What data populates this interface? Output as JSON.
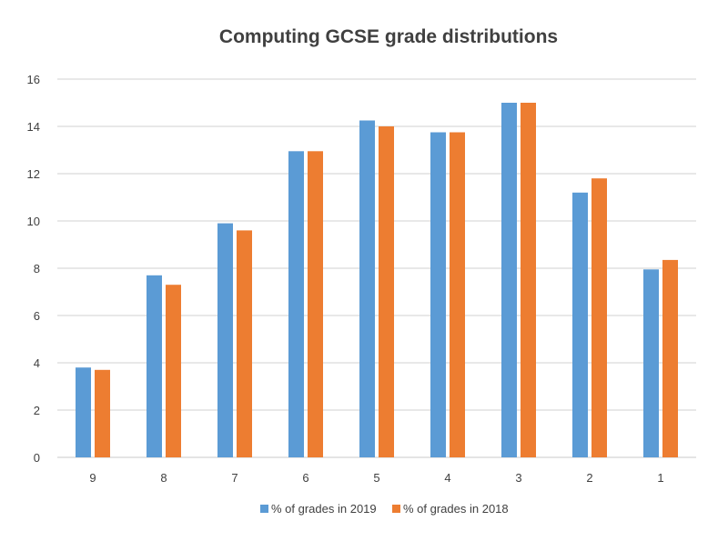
{
  "chart_data": {
    "type": "bar",
    "title": "Computing GCSE grade distributions",
    "categories": [
      "9",
      "8",
      "7",
      "6",
      "5",
      "4",
      "3",
      "2",
      "1"
    ],
    "series": [
      {
        "name": "% of grades in 2019",
        "color": "#5B9BD5",
        "values": [
          3.8,
          7.7,
          9.9,
          12.95,
          14.25,
          13.75,
          15.0,
          11.2,
          7.95
        ]
      },
      {
        "name": "% of grades in 2018",
        "color": "#ED7D31",
        "values": [
          3.7,
          7.3,
          9.6,
          12.95,
          14.0,
          13.75,
          15.0,
          11.8,
          8.35
        ]
      }
    ],
    "xlabel": "",
    "ylabel": "",
    "ylim": [
      0,
      16
    ],
    "yticks": [
      "0",
      "2",
      "4",
      "6",
      "8",
      "10",
      "12",
      "14",
      "16"
    ],
    "grid": true,
    "gridColor": "#D9D9D9",
    "legend": "bottom"
  }
}
